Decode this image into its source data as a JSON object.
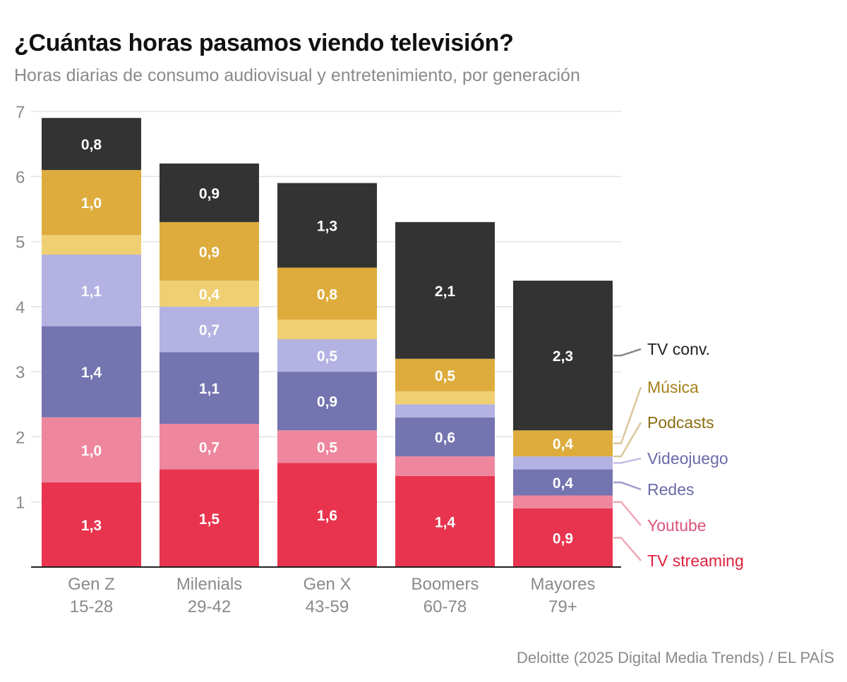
{
  "header": {
    "title": "¿Cuántas horas pasamos viendo televisión?",
    "subtitle": "Horas diarias de consumo audiovisual y entretenimiento, por generación"
  },
  "source": "Deloitte (2025 Digital Media Trends) / EL PAÍS",
  "colors": {
    "tv_streaming": "#e8344e",
    "youtube": "#ee869e",
    "redes": "#7474b0",
    "videojuego": "#b4b2e2",
    "podcasts": "#efcf72",
    "musica": "#ddac3c",
    "tv_conv": "#333333"
  },
  "chart_data": {
    "type": "bar",
    "stacked": true,
    "title": "¿Cuántas horas pasamos viendo televisión?",
    "subtitle": "Horas diarias de consumo audiovisual y entretenimiento, por generación",
    "xlabel": "",
    "ylabel": "",
    "ylim": [
      0,
      7
    ],
    "yticks": [
      "1",
      "2",
      "3",
      "4",
      "5",
      "6",
      "7"
    ],
    "grid": true,
    "categories": [
      {
        "name": "Gen Z",
        "range": "15-28"
      },
      {
        "name": "Milenials",
        "range": "29-42"
      },
      {
        "name": "Gen X",
        "range": "43-59"
      },
      {
        "name": "Boomers",
        "range": "60-78"
      },
      {
        "name": "Mayores",
        "range": "79+"
      }
    ],
    "series": [
      {
        "key": "tv_streaming",
        "name": "TV streaming",
        "values": [
          1.3,
          1.5,
          1.6,
          1.4,
          0.9
        ],
        "labels": [
          "1,3",
          "1,5",
          "1,6",
          "1,4",
          "0,9"
        ]
      },
      {
        "key": "youtube",
        "name": "Youtube",
        "values": [
          1.0,
          0.7,
          0.5,
          0.3,
          0.2
        ],
        "labels": [
          "1,0",
          "0,7",
          "0,5",
          "",
          ""
        ]
      },
      {
        "key": "redes",
        "name": "Redes",
        "values": [
          1.4,
          1.1,
          0.9,
          0.6,
          0.4
        ],
        "labels": [
          "1,4",
          "1,1",
          "0,9",
          "0,6",
          "0,4"
        ]
      },
      {
        "key": "videojuego",
        "name": "Videojuego",
        "values": [
          1.1,
          0.7,
          0.5,
          0.2,
          0.2
        ],
        "labels": [
          "1,1",
          "0,7",
          "0,5",
          "",
          ""
        ]
      },
      {
        "key": "podcasts",
        "name": "Podcasts",
        "values": [
          0.3,
          0.4,
          0.3,
          0.2,
          0.0
        ],
        "labels": [
          "",
          "0,4",
          "",
          "",
          ""
        ]
      },
      {
        "key": "musica",
        "name": "Música",
        "values": [
          1.0,
          0.9,
          0.8,
          0.5,
          0.4
        ],
        "labels": [
          "1,0",
          "0,9",
          "0,8",
          "0,5",
          "0,4"
        ]
      },
      {
        "key": "tv_conv",
        "name": "TV conv.",
        "values": [
          0.8,
          0.9,
          1.3,
          2.1,
          2.3
        ],
        "labels": [
          "0,8",
          "0,9",
          "1,3",
          "2,1",
          "2,3"
        ]
      }
    ],
    "legend_order": [
      "tv_conv",
      "musica",
      "podcasts",
      "videojuego",
      "redes",
      "youtube",
      "tv_streaming"
    ],
    "legend_placement": "right"
  }
}
